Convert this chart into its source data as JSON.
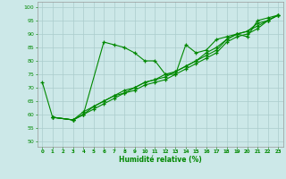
{
  "title": "",
  "xlabel": "Humidité relative (%)",
  "ylabel": "",
  "background_color": "#cce8e8",
  "grid_color": "#aacccc",
  "line_color": "#008800",
  "marker": "+",
  "xlim": [
    -0.5,
    23.5
  ],
  "ylim": [
    48,
    102
  ],
  "yticks": [
    50,
    55,
    60,
    65,
    70,
    75,
    80,
    85,
    90,
    95,
    100
  ],
  "xticks": [
    0,
    1,
    2,
    3,
    4,
    5,
    6,
    7,
    8,
    9,
    10,
    11,
    12,
    13,
    14,
    15,
    16,
    17,
    18,
    19,
    20,
    21,
    22,
    23
  ],
  "lines": [
    {
      "x": [
        0,
        1,
        3,
        4,
        6,
        7,
        8,
        9,
        10,
        11,
        12,
        13,
        14,
        15,
        16,
        17,
        18,
        19,
        20,
        21,
        22,
        23
      ],
      "y": [
        72,
        59,
        58,
        60,
        87,
        86,
        85,
        83,
        80,
        80,
        75,
        75,
        86,
        83,
        84,
        88,
        89,
        90,
        89,
        95,
        96,
        97
      ]
    },
    {
      "x": [
        1,
        3,
        4,
        5,
        6,
        7,
        8,
        9,
        10,
        11,
        12,
        13,
        14,
        15,
        16,
        17,
        18,
        19,
        20,
        21,
        22,
        23
      ],
      "y": [
        59,
        58,
        60,
        63,
        65,
        67,
        68,
        70,
        72,
        73,
        74,
        76,
        78,
        80,
        82,
        84,
        88,
        90,
        91,
        93,
        95,
        97
      ]
    },
    {
      "x": [
        1,
        3,
        4,
        5,
        6,
        7,
        8,
        9,
        10,
        11,
        12,
        13,
        14,
        15,
        16,
        17,
        18,
        19,
        20,
        21,
        22,
        23
      ],
      "y": [
        59,
        58,
        60,
        62,
        64,
        66,
        68,
        69,
        71,
        72,
        73,
        75,
        77,
        79,
        81,
        83,
        87,
        89,
        90,
        92,
        95,
        97
      ]
    },
    {
      "x": [
        1,
        3,
        4,
        5,
        6,
        7,
        8,
        9,
        10,
        11,
        12,
        13,
        14,
        15,
        16,
        17,
        18,
        19,
        20,
        21,
        22,
        23
      ],
      "y": [
        59,
        58,
        61,
        63,
        65,
        67,
        69,
        70,
        72,
        73,
        75,
        76,
        78,
        80,
        83,
        85,
        88,
        90,
        91,
        94,
        95,
        97
      ]
    }
  ]
}
